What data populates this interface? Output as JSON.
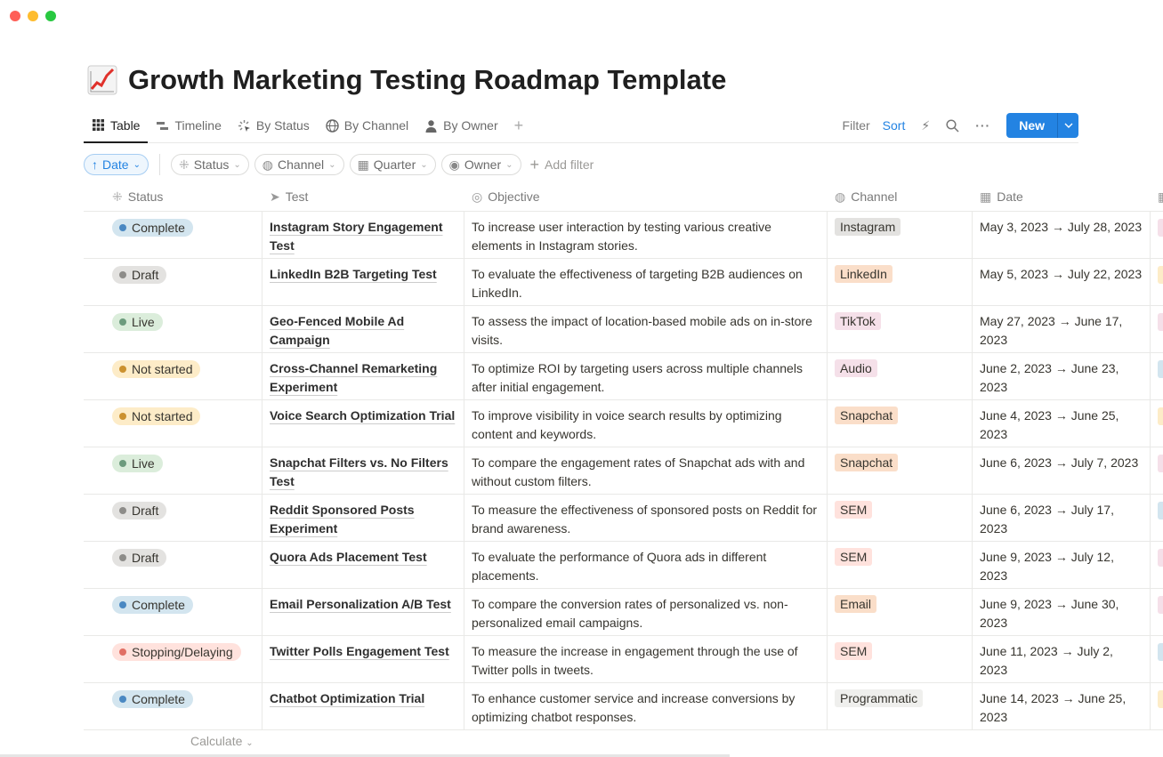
{
  "page": {
    "title": "Growth Marketing Testing Roadmap Template",
    "icon": "chart-increasing-icon"
  },
  "tabs": [
    {
      "label": "Table",
      "icon": "grid-icon"
    },
    {
      "label": "Timeline",
      "icon": "timeline-icon"
    },
    {
      "label": "By Status",
      "icon": "status-icon"
    },
    {
      "label": "By Channel",
      "icon": "globe-icon"
    },
    {
      "label": "By Owner",
      "icon": "person-icon"
    }
  ],
  "toolbar": {
    "filter": "Filter",
    "sort": "Sort",
    "new": "New"
  },
  "filters": {
    "date": "Date",
    "status": "Status",
    "channel": "Channel",
    "quarter": "Quarter",
    "owner": "Owner",
    "add": "Add filter"
  },
  "columns": {
    "status": "Status",
    "test": "Test",
    "objective": "Objective",
    "channel": "Channel",
    "date": "Date"
  },
  "colors": {
    "status": {
      "Complete": [
        "#d3e5ef",
        "#4a88c2"
      ],
      "Draft": [
        "#e3e2e0",
        "#8d8c89"
      ],
      "Live": [
        "#dbeddb",
        "#6c9b7d"
      ],
      "Not started": [
        "#fdecc8",
        "#cb912f"
      ],
      "Stopping/Delaying": [
        "#ffe2dd",
        "#e16f64"
      ]
    },
    "channel": {
      "Instagram": "#e3e2e0",
      "LinkedIn": "#fadec9",
      "TikTok": "#f5e0e9",
      "Audio": "#f5e0e9",
      "Snapchat": "#fadec9",
      "SEM": "#ffe2dd",
      "Email": "#fadec9",
      "Programmatic": "#efefed"
    },
    "quarter": {
      "pink": "#f5e0e9",
      "orange": "#fdecc8",
      "blue": "#d3e5ef"
    },
    "accent": "#2383e2"
  },
  "rows": [
    {
      "status": "Complete",
      "test": "Instagram Story Engagement Test",
      "objective": "To increase user interaction by testing various creative elements in Instagram stories.",
      "channel": "Instagram",
      "date": "May 3, 2023 → July 28, 2023",
      "quarter_color": "pink"
    },
    {
      "status": "Draft",
      "test": "LinkedIn B2B Targeting Test",
      "objective": "To evaluate the effectiveness of targeting B2B audiences on LinkedIn.",
      "channel": "LinkedIn",
      "date": "May 5, 2023 → July 22, 2023",
      "quarter_color": "orange"
    },
    {
      "status": "Live",
      "test": "Geo-Fenced Mobile Ad Campaign",
      "objective": "To assess the impact of location-based mobile ads on in-store visits.",
      "channel": "TikTok",
      "date": "May 27, 2023 → June 17, 2023",
      "quarter_color": "pink"
    },
    {
      "status": "Not started",
      "test": "Cross-Channel Remarketing Experiment",
      "objective": "To optimize ROI by targeting users across multiple channels after initial engagement.",
      "channel": "Audio",
      "date": "June 2, 2023 → June 23, 2023",
      "quarter_color": "blue"
    },
    {
      "status": "Not started",
      "test": "Voice Search Optimization Trial",
      "objective": "To improve visibility in voice search results by optimizing content and keywords.",
      "channel": "Snapchat",
      "date": "June 4, 2023 → June 25, 2023",
      "quarter_color": "orange"
    },
    {
      "status": "Live",
      "test": "Snapchat Filters vs. No Filters Test",
      "objective": "To compare the engagement rates of Snapchat ads with and without custom filters.",
      "channel": "Snapchat",
      "date": "June 6, 2023 → July 7, 2023",
      "quarter_color": "pink"
    },
    {
      "status": "Draft",
      "test": "Reddit Sponsored Posts Experiment",
      "objective": "To measure the effectiveness of sponsored posts on Reddit for brand awareness.",
      "channel": "SEM",
      "date": "June 6, 2023 → July 17, 2023",
      "quarter_color": "blue"
    },
    {
      "status": "Draft",
      "test": "Quora Ads Placement Test",
      "objective": "To evaluate the performance of Quora ads in different placements.",
      "channel": "SEM",
      "date": "June 9, 2023 → July 12, 2023",
      "quarter_color": "pink"
    },
    {
      "status": "Complete",
      "test": "Email Personalization A/B Test",
      "objective": "To compare the conversion rates of personalized vs. non-personalized email campaigns.",
      "channel": "Email",
      "date": "June 9, 2023 → June 30, 2023",
      "quarter_color": "pink"
    },
    {
      "status": "Stopping/Delaying",
      "test": "Twitter Polls Engagement Test",
      "objective": "To measure the increase in engagement through the use of Twitter polls in tweets.",
      "channel": "SEM",
      "date": "June 11, 2023 → July 2, 2023",
      "quarter_color": "blue"
    },
    {
      "status": "Complete",
      "test": "Chatbot Optimization Trial",
      "objective": "To enhance customer service and increase conversions by optimizing chatbot responses.",
      "channel": "Programmatic",
      "date": "June 14, 2023 → June 25, 2023",
      "quarter_color": "orange"
    }
  ],
  "footer": {
    "calculate": "Calculate"
  }
}
